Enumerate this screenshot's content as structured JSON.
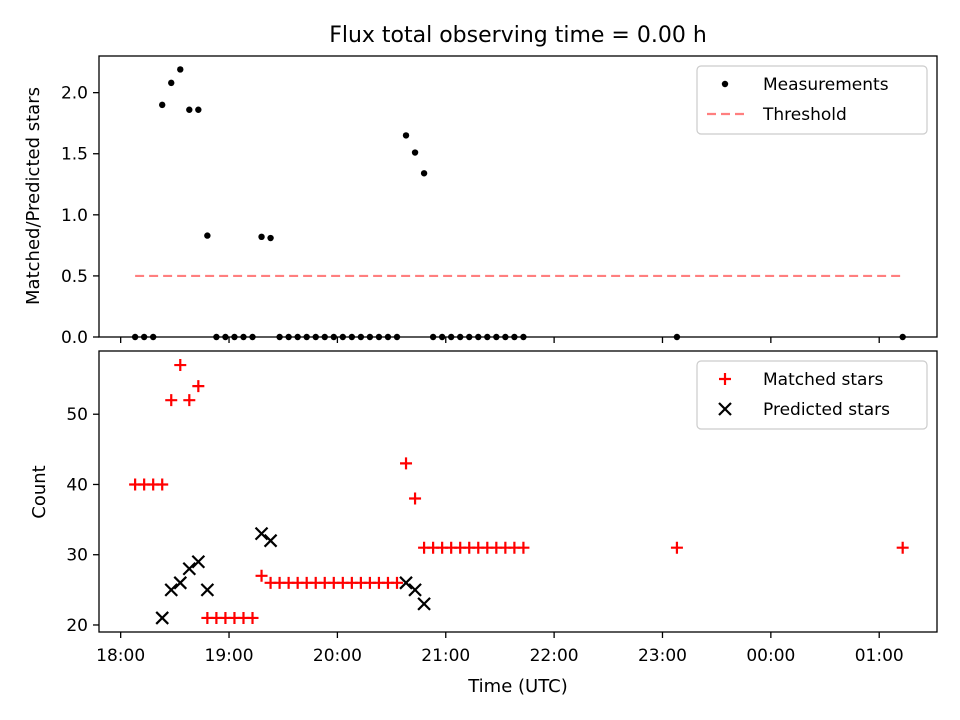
{
  "title": "Flux total observing time = 0.00 h",
  "chart_data": [
    {
      "type": "scatter",
      "xlabel": "",
      "ylabel": "Matched/Predicted stars",
      "xlim": [
        "17:48",
        "01:32"
      ],
      "ylim": [
        0,
        2.3
      ],
      "yticks": [
        "0.0",
        "0.5",
        "1.0",
        "1.5",
        "2.0"
      ],
      "grid": false,
      "legend_position": "top-right",
      "series": [
        {
          "name": "Measurements",
          "style": "dot",
          "color": "#000000",
          "x": [
            "18:08",
            "18:13",
            "18:18",
            "18:23",
            "18:28",
            "18:33",
            "18:38",
            "18:43",
            "18:48",
            "18:53",
            "18:58",
            "19:03",
            "19:08",
            "19:13",
            "19:18",
            "19:23",
            "19:28",
            "19:33",
            "19:38",
            "19:43",
            "19:48",
            "19:53",
            "19:58",
            "20:03",
            "20:08",
            "20:13",
            "20:18",
            "20:23",
            "20:28",
            "20:33",
            "20:38",
            "20:43",
            "20:48",
            "20:53",
            "20:58",
            "21:03",
            "21:08",
            "21:13",
            "21:18",
            "21:23",
            "21:28",
            "21:33",
            "21:38",
            "21:43",
            "23:08",
            "01:13"
          ],
          "y": [
            0,
            0,
            0,
            1.9,
            2.08,
            2.19,
            1.86,
            1.86,
            0.83,
            0,
            0,
            0,
            0,
            0,
            0.82,
            0.81,
            0,
            0,
            0,
            0,
            0,
            0,
            0,
            0,
            0,
            0,
            0,
            0,
            0,
            0,
            1.65,
            1.51,
            1.34,
            0,
            0,
            0,
            0,
            0,
            0,
            0,
            0,
            0,
            0,
            0,
            0,
            0
          ]
        },
        {
          "name": "Threshold",
          "style": "dashed-line",
          "color": "#ff7f7f",
          "x": [
            "18:08",
            "01:13"
          ],
          "y": [
            0.5,
            0.5
          ]
        }
      ]
    },
    {
      "type": "scatter",
      "xlabel": "Time (UTC)",
      "ylabel": "Count",
      "xlim": [
        "17:48",
        "01:32"
      ],
      "ylim": [
        19,
        59
      ],
      "yticks": [
        "20",
        "30",
        "40",
        "50"
      ],
      "xticks": [
        "18:00",
        "19:00",
        "20:00",
        "21:00",
        "22:00",
        "23:00",
        "00:00",
        "01:00"
      ],
      "grid": false,
      "legend_position": "top-right",
      "series": [
        {
          "name": "Matched stars",
          "style": "plus",
          "color": "#ff0000",
          "x": [
            "18:08",
            "18:13",
            "18:18",
            "18:23",
            "18:28",
            "18:33",
            "18:38",
            "18:43",
            "18:48",
            "18:53",
            "18:58",
            "19:03",
            "19:08",
            "19:13",
            "19:18",
            "19:23",
            "19:28",
            "19:33",
            "19:38",
            "19:43",
            "19:48",
            "19:53",
            "19:58",
            "20:03",
            "20:08",
            "20:13",
            "20:18",
            "20:23",
            "20:28",
            "20:33",
            "20:38",
            "20:43",
            "20:48",
            "20:53",
            "20:58",
            "21:03",
            "21:08",
            "21:13",
            "21:18",
            "21:23",
            "21:28",
            "21:33",
            "21:38",
            "21:43",
            "23:08",
            "01:13"
          ],
          "y": [
            40,
            40,
            40,
            40,
            52,
            57,
            52,
            54,
            21,
            21,
            21,
            21,
            21,
            21,
            27,
            26,
            26,
            26,
            26,
            26,
            26,
            26,
            26,
            26,
            26,
            26,
            26,
            26,
            26,
            26,
            43,
            38,
            31,
            31,
            31,
            31,
            31,
            31,
            31,
            31,
            31,
            31,
            31,
            31,
            31,
            31
          ]
        },
        {
          "name": "Predicted stars",
          "style": "x",
          "color": "#000000",
          "x": [
            "18:23",
            "18:28",
            "18:33",
            "18:38",
            "18:43",
            "18:48",
            "19:18",
            "19:23",
            "20:38",
            "20:43",
            "20:48"
          ],
          "y": [
            21,
            25,
            26,
            28,
            29,
            25,
            33,
            32,
            26,
            25,
            23
          ]
        }
      ]
    }
  ]
}
